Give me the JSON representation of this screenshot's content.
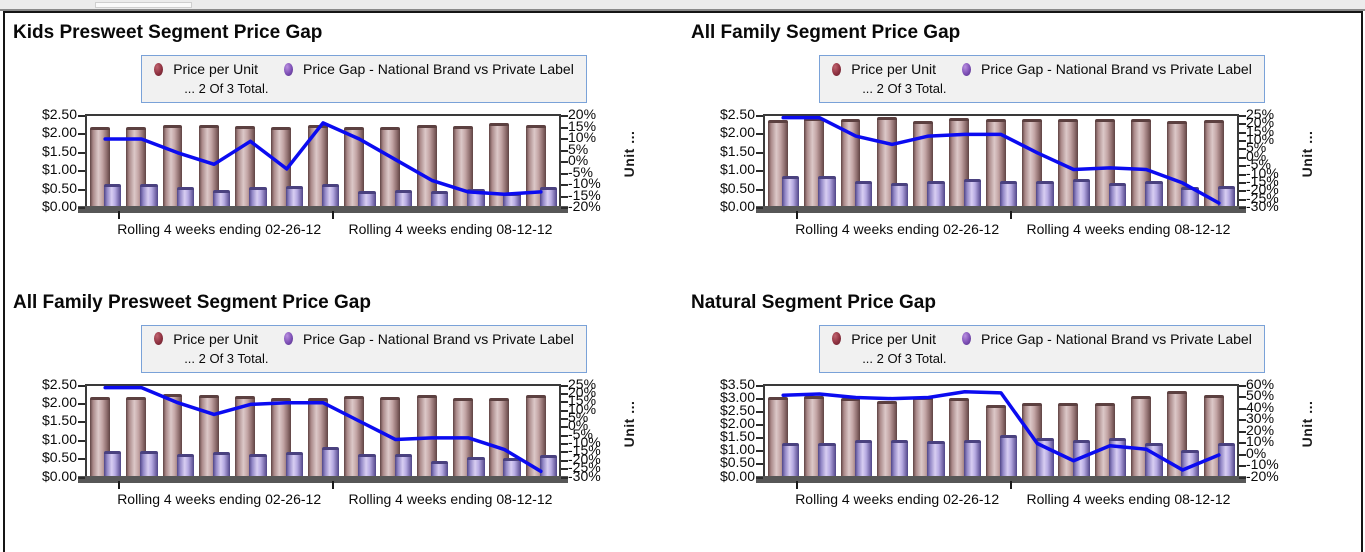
{
  "colors": {
    "price_bar": "#a98888",
    "gap_bar": "#9186c5",
    "trend_line": "#0b0bf0",
    "legend_border": "#7aa2d8",
    "legend_bg": "#f1f1f1",
    "axis_base_band": "#575757"
  },
  "chart_data": [
    {
      "type": "combo",
      "title": "Kids Presweet Segment Price Gap",
      "legend": {
        "entries": [
          {
            "label": "Price per Unit",
            "color": "#8e3140",
            "kind": "column"
          },
          {
            "label": "Price Gap - National Brand vs Private Label",
            "color": "#7d4fb5",
            "kind": "column"
          }
        ],
        "note": "... 2 Of 3 Total."
      },
      "x": {
        "n_periods": 13,
        "tick_labels": [
          "Rolling 4 weeks ending 02-26-12",
          "Rolling 4 weeks ending 08-12-12"
        ],
        "tick_fractions": [
          6.5,
          52
        ]
      },
      "left_axis": {
        "min": 0,
        "max": 2.5,
        "tick_labels": [
          "$2.50",
          "$2.00",
          "$1.50",
          "$1.00",
          "$0.50",
          "$0.00"
        ]
      },
      "right_axis": {
        "min": -20,
        "max": 20,
        "title": "Unit ...",
        "tick_labels": [
          "20%",
          "15%",
          "10%",
          "5%",
          "0%",
          "-5%",
          "-10%",
          "-15%",
          "-20%"
        ]
      },
      "series": [
        {
          "name": "Price per Unit",
          "kind": "column",
          "axis": "left",
          "values": [
            2.21,
            2.21,
            2.25,
            2.25,
            2.22,
            2.21,
            2.25,
            2.21,
            2.21,
            2.25,
            2.24,
            2.3,
            2.26
          ]
        },
        {
          "name": "Price Gap - National Brand vs Private Label",
          "kind": "column",
          "axis": "left",
          "values": [
            0.64,
            0.64,
            0.56,
            0.5,
            0.56,
            0.6,
            0.64,
            0.46,
            0.5,
            0.46,
            0.52,
            0.4,
            0.56
          ]
        },
        {
          "name": "Unit ...",
          "kind": "line",
          "axis": "right",
          "values": [
            10,
            10,
            4,
            -1,
            9,
            -3,
            17,
            10,
            1,
            -8,
            -13,
            -14,
            -13
          ]
        }
      ]
    },
    {
      "type": "combo",
      "title": "All Family Segment Price Gap",
      "legend": {
        "entries": [
          {
            "label": "Price per Unit",
            "color": "#8e3140",
            "kind": "column"
          },
          {
            "label": "Price Gap - National Brand vs Private Label",
            "color": "#7d4fb5",
            "kind": "column"
          }
        ],
        "note": "... 2 Of 3 Total."
      },
      "x": {
        "n_periods": 13,
        "tick_labels": [
          "Rolling 4 weeks ending 02-26-12",
          "Rolling 4 weeks ending 08-12-12"
        ],
        "tick_fractions": [
          6.5,
          52
        ]
      },
      "left_axis": {
        "min": 0,
        "max": 2.5,
        "tick_labels": [
          "$2.50",
          "$2.00",
          "$1.50",
          "$1.00",
          "$0.50",
          "$0.00"
        ]
      },
      "right_axis": {
        "min": -30,
        "max": 25,
        "title": "Unit ...",
        "tick_labels": [
          "25%",
          "20%",
          "15%",
          "10%",
          "5%",
          "0%",
          "-5%",
          "-10%",
          "-15%",
          "-20%",
          "-25%",
          "-30%"
        ]
      },
      "series": [
        {
          "name": "Price per Unit",
          "kind": "column",
          "axis": "left",
          "values": [
            2.38,
            2.45,
            2.42,
            2.48,
            2.36,
            2.44,
            2.43,
            2.42,
            2.43,
            2.42,
            2.42,
            2.36,
            2.38
          ]
        },
        {
          "name": "Price Gap - National Brand vs Private Label",
          "kind": "column",
          "axis": "left",
          "values": [
            0.87,
            0.87,
            0.73,
            0.68,
            0.74,
            0.78,
            0.74,
            0.74,
            0.78,
            0.68,
            0.74,
            0.58,
            0.61
          ]
        },
        {
          "name": "Unit ...",
          "kind": "line",
          "axis": "right",
          "values": [
            24,
            24,
            13,
            8,
            13,
            14,
            14,
            3,
            -7,
            -6,
            -7,
            -15,
            -27
          ]
        }
      ]
    },
    {
      "type": "combo",
      "title": "All Family Presweet Segment Price Gap",
      "legend": {
        "entries": [
          {
            "label": "Price per Unit",
            "color": "#8e3140",
            "kind": "column"
          },
          {
            "label": "Price Gap - National Brand vs Private Label",
            "color": "#7d4fb5",
            "kind": "column"
          }
        ],
        "note": "... 2 Of 3 Total."
      },
      "x": {
        "n_periods": 13,
        "tick_labels": [
          "Rolling 4 weeks ending 02-26-12",
          "Rolling 4 weeks ending 08-12-12"
        ],
        "tick_fractions": [
          6.5,
          52
        ]
      },
      "left_axis": {
        "min": 0,
        "max": 2.5,
        "tick_labels": [
          "$2.50",
          "$2.00",
          "$1.50",
          "$1.00",
          "$0.50",
          "$0.00"
        ]
      },
      "right_axis": {
        "min": -30,
        "max": 25,
        "title": "Unit ...",
        "tick_labels": [
          "25%",
          "20%",
          "15%",
          "10%",
          "5%",
          "0%",
          "-5%",
          "-10%",
          "-15%",
          "-20%",
          "-25%",
          "-30%"
        ]
      },
      "series": [
        {
          "name": "Price per Unit",
          "kind": "column",
          "axis": "left",
          "values": [
            2.2,
            2.2,
            2.26,
            2.24,
            2.21,
            2.15,
            2.17,
            2.21,
            2.2,
            2.25,
            2.16,
            2.15,
            2.25
          ]
        },
        {
          "name": "Price Gap - National Brand vs Private Label",
          "kind": "column",
          "axis": "left",
          "values": [
            0.73,
            0.73,
            0.64,
            0.69,
            0.64,
            0.69,
            0.83,
            0.64,
            0.64,
            0.45,
            0.56,
            0.54,
            0.6
          ]
        },
        {
          "name": "Unit ...",
          "kind": "line",
          "axis": "right",
          "values": [
            24,
            24,
            15,
            8,
            14,
            15,
            15,
            4,
            -7,
            -6,
            -6,
            -13,
            -26
          ]
        }
      ]
    },
    {
      "type": "combo",
      "title": "Natural Segment Price Gap",
      "legend": {
        "entries": [
          {
            "label": "Price per Unit",
            "color": "#8e3140",
            "kind": "column"
          },
          {
            "label": "Price Gap - National Brand vs Private Label",
            "color": "#7d4fb5",
            "kind": "column"
          }
        ],
        "note": "... 2 Of 3 Total."
      },
      "x": {
        "n_periods": 13,
        "tick_labels": [
          "Rolling 4 weeks ending 02-26-12",
          "Rolling 4 weeks ending 08-12-12"
        ],
        "tick_fractions": [
          6.5,
          52
        ]
      },
      "left_axis": {
        "min": 0,
        "max": 3.5,
        "tick_labels": [
          "$3.50",
          "$3.00",
          "$2.50",
          "$2.00",
          "$1.50",
          "$1.00",
          "$0.50",
          "$0.00"
        ]
      },
      "right_axis": {
        "min": -20,
        "max": 60,
        "title": "Unit ...",
        "tick_labels": [
          "60%",
          "50%",
          "40%",
          "30%",
          "20%",
          "10%",
          "0%",
          "-10%",
          "-20%"
        ]
      },
      "series": [
        {
          "name": "Price per Unit",
          "kind": "column",
          "axis": "left",
          "values": [
            3.06,
            3.12,
            3.02,
            2.92,
            3.06,
            3.02,
            2.74,
            2.85,
            2.84,
            2.85,
            3.09,
            3.29,
            3.13
          ]
        },
        {
          "name": "Price Gap - National Brand vs Private Label",
          "kind": "column",
          "axis": "left",
          "values": [
            1.3,
            1.3,
            1.42,
            1.42,
            1.38,
            1.42,
            1.62,
            1.52,
            1.42,
            1.52,
            1.32,
            1.06,
            1.32
          ]
        },
        {
          "name": "Unit ...",
          "kind": "line",
          "axis": "right",
          "values": [
            52,
            53,
            50,
            49,
            50,
            55,
            54,
            10,
            -5,
            8,
            5,
            -13,
            0
          ]
        }
      ]
    }
  ]
}
